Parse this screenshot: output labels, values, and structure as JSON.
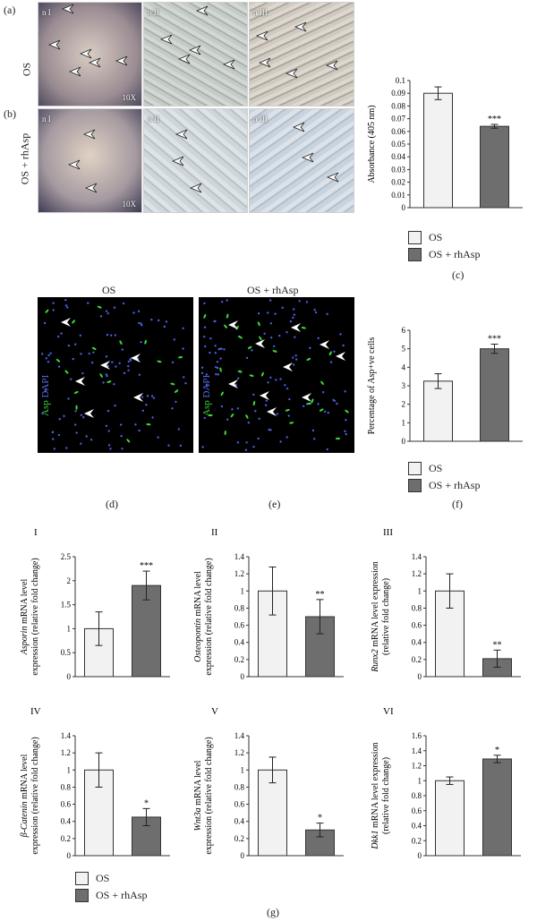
{
  "figure": {
    "panel_a_label": "(a)",
    "panel_b_label": "(b)",
    "panel_c_label": "(c)",
    "panel_d_label": "(d)",
    "panel_e_label": "(e)",
    "panel_f_label": "(f)",
    "panel_g_label": "(g)",
    "row_os": "OS",
    "row_os_rhasp": "OS + rhAsp",
    "micro_tags": [
      "n I",
      "n II",
      "n III"
    ],
    "magnification": "10X",
    "fluor_title_os": "OS",
    "fluor_title_rhasp": "OS + rhAsp",
    "fluor_channel_asp": "Asp",
    "fluor_channel_dapi": "DAPI",
    "legend_os": "OS",
    "legend_rhasp": "OS + rhAsp"
  },
  "colors": {
    "os_fill": "#f2f2f2",
    "rhasp_fill": "#6e6e6e",
    "axis": "#333333"
  },
  "chart_data": [
    {
      "id": "c",
      "type": "bar",
      "ylabel": "Absorbance (405 nm)",
      "ylim": [
        0,
        0.1
      ],
      "ticks": [
        "0",
        "0.01",
        "0.02",
        "0.03",
        "0.04",
        "0.05",
        "0.06",
        "0.07",
        "0.08",
        "0.09",
        "0.1"
      ],
      "categories": [
        "OS",
        "OS + rhAsp"
      ],
      "values": [
        0.09,
        0.064
      ],
      "errors": [
        0.005,
        0.0015
      ],
      "significance": [
        "",
        "***"
      ]
    },
    {
      "id": "f",
      "type": "bar",
      "ylabel": "Percentage of Asp+ve cells",
      "ylim": [
        0,
        6
      ],
      "ticks": [
        "0",
        "1",
        "2",
        "3",
        "4",
        "5",
        "6"
      ],
      "categories": [
        "OS",
        "OS + rhAsp"
      ],
      "values": [
        3.25,
        5.0
      ],
      "errors": [
        0.4,
        0.25
      ],
      "significance": [
        "",
        "***"
      ]
    },
    {
      "id": "gI",
      "type": "bar",
      "panel": "I",
      "gene": "Asporin",
      "ylabel_rest": " mRNA level",
      "ylabel2": "expression (relative fold change)",
      "ylim": [
        0,
        2.5
      ],
      "ticks": [
        "0",
        "0.5",
        "1",
        "1.5",
        "2",
        "2.5"
      ],
      "categories": [
        "OS",
        "OS + rhAsp"
      ],
      "values": [
        1.0,
        1.9
      ],
      "errors": [
        0.35,
        0.3
      ],
      "significance": [
        "",
        "***"
      ]
    },
    {
      "id": "gII",
      "type": "bar",
      "panel": "II",
      "gene": "Osteopontin",
      "ylabel_rest": " mRNA level",
      "ylabel2": "expression (relative fold change)",
      "ylim": [
        0,
        1.4
      ],
      "ticks": [
        "0",
        "0.2",
        "0.4",
        "0.6",
        "0.8",
        "1",
        "1.2",
        "1.4"
      ],
      "categories": [
        "OS",
        "OS + rhAsp"
      ],
      "values": [
        1.0,
        0.7
      ],
      "errors": [
        0.28,
        0.2
      ],
      "significance": [
        "",
        "**"
      ]
    },
    {
      "id": "gIII",
      "type": "bar",
      "panel": "III",
      "gene": "Runx2",
      "ylabel_rest": " mRNA level expression",
      "ylabel2": "(relative fold change)",
      "ylim": [
        0,
        1.4
      ],
      "ticks": [
        "0",
        "0.2",
        "0.4",
        "0.6",
        "0.8",
        "1",
        "1.2",
        "1.4"
      ],
      "categories": [
        "OS",
        "OS + rhAsp"
      ],
      "values": [
        1.0,
        0.21
      ],
      "errors": [
        0.2,
        0.1
      ],
      "significance": [
        "",
        "**"
      ]
    },
    {
      "id": "gIV",
      "type": "bar",
      "panel": "IV",
      "gene": "β-Catenin",
      "ylabel_rest": " mRNA level",
      "ylabel2": "expression (relative fold change)",
      "ylim": [
        0,
        1.4
      ],
      "ticks": [
        "0",
        "0.2",
        "0.4",
        "0.6",
        "0.8",
        "1",
        "1.2",
        "1.4"
      ],
      "categories": [
        "OS",
        "OS + rhAsp"
      ],
      "values": [
        1.0,
        0.45
      ],
      "errors": [
        0.2,
        0.1
      ],
      "significance": [
        "",
        "*"
      ]
    },
    {
      "id": "gV",
      "type": "bar",
      "panel": "V",
      "gene": "Wnt3a",
      "ylabel_rest": " mRNA level",
      "ylabel2": "expression (relative fold change)",
      "ylim": [
        0,
        1.4
      ],
      "ticks": [
        "0",
        "0.2",
        "0.4",
        "0.6",
        "0.8",
        "1",
        "1.2",
        "1.4"
      ],
      "categories": [
        "OS",
        "OS + rhAsp"
      ],
      "values": [
        1.0,
        0.3
      ],
      "errors": [
        0.15,
        0.08
      ],
      "significance": [
        "",
        "*"
      ]
    },
    {
      "id": "gVI",
      "type": "bar",
      "panel": "VI",
      "gene": "Dkk1",
      "ylabel_rest": " mRNA level expression",
      "ylabel2": "(relative fold change)",
      "ylim": [
        0,
        1.6
      ],
      "ticks": [
        "0",
        "0.2",
        "0.4",
        "0.6",
        "0.8",
        "1",
        "1.2",
        "1.4",
        "1.6"
      ],
      "categories": [
        "OS",
        "OS + rhAsp"
      ],
      "values": [
        1.0,
        1.29
      ],
      "errors": [
        0.05,
        0.05
      ],
      "significance": [
        "",
        "*"
      ]
    }
  ]
}
